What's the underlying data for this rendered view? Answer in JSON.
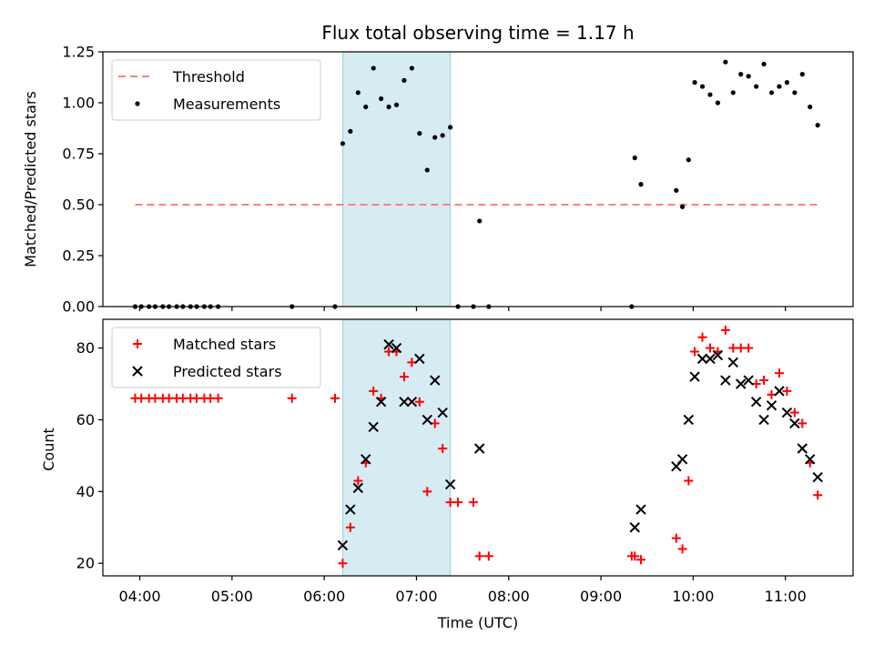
{
  "chart_data": [
    {
      "type": "scatter",
      "title": "Flux total observing time = 1.17 h",
      "xlabel": "",
      "ylabel": "Matched/Predicted stars",
      "xlim": [
        "03:36",
        "11:44"
      ],
      "ylim": [
        0,
        1.25
      ],
      "yticks": [
        "0.00",
        "0.25",
        "0.50",
        "0.75",
        "1.00",
        "1.25"
      ],
      "xticks": [
        "04:00",
        "05:00",
        "06:00",
        "07:00",
        "08:00",
        "09:00",
        "10:00",
        "11:00"
      ],
      "show_xtick_labels": false,
      "shaded_span": [
        "06:12",
        "07:22"
      ],
      "threshold": {
        "name": "Threshold",
        "value": 0.5,
        "x": [
          "03:57",
          "11:22"
        ],
        "color": "#ff7f7f",
        "style": "dashed"
      },
      "legend": {
        "loc": "upper-left",
        "entries": [
          "Threshold",
          "Measurements"
        ]
      },
      "series": [
        {
          "name": "Measurements",
          "marker": "dot",
          "color": "#000000",
          "points": [
            [
              "03:57",
              0
            ],
            [
              "04:01",
              0
            ],
            [
              "04:06",
              0
            ],
            [
              "04:10",
              0
            ],
            [
              "04:15",
              0
            ],
            [
              "04:19",
              0
            ],
            [
              "04:24",
              0
            ],
            [
              "04:28",
              0
            ],
            [
              "04:33",
              0
            ],
            [
              "04:37",
              0
            ],
            [
              "04:42",
              0
            ],
            [
              "04:46",
              0
            ],
            [
              "04:51",
              0
            ],
            [
              "05:39",
              0
            ],
            [
              "06:07",
              0
            ],
            [
              "06:12",
              0.8
            ],
            [
              "06:17",
              0.86
            ],
            [
              "06:22",
              1.05
            ],
            [
              "06:27",
              0.98
            ],
            [
              "06:32",
              1.17
            ],
            [
              "06:37",
              1.02
            ],
            [
              "06:42",
              0.98
            ],
            [
              "06:47",
              0.99
            ],
            [
              "06:52",
              1.11
            ],
            [
              "06:57",
              1.17
            ],
            [
              "07:02",
              0.85
            ],
            [
              "07:07",
              0.67
            ],
            [
              "07:12",
              0.83
            ],
            [
              "07:17",
              0.84
            ],
            [
              "07:22",
              0.88
            ],
            [
              "07:27",
              0
            ],
            [
              "07:37",
              0
            ],
            [
              "07:41",
              0.42
            ],
            [
              "07:47",
              0
            ],
            [
              "09:20",
              0
            ],
            [
              "09:22",
              0.73
            ],
            [
              "09:26",
              0.6
            ],
            [
              "09:49",
              0.57
            ],
            [
              "09:53",
              0.49
            ],
            [
              "09:57",
              0.72
            ],
            [
              "10:01",
              1.1
            ],
            [
              "10:06",
              1.08
            ],
            [
              "10:11",
              1.04
            ],
            [
              "10:16",
              1.0
            ],
            [
              "10:21",
              1.2
            ],
            [
              "10:26",
              1.05
            ],
            [
              "10:31",
              1.14
            ],
            [
              "10:36",
              1.13
            ],
            [
              "10:41",
              1.08
            ],
            [
              "10:46",
              1.19
            ],
            [
              "10:51",
              1.05
            ],
            [
              "10:56",
              1.08
            ],
            [
              "11:01",
              1.1
            ],
            [
              "11:06",
              1.05
            ],
            [
              "11:11",
              1.14
            ],
            [
              "11:16",
              0.98
            ],
            [
              "11:21",
              0.89
            ]
          ]
        }
      ]
    },
    {
      "type": "scatter",
      "title": "",
      "xlabel": "Time (UTC)",
      "ylabel": "Count",
      "xlim": [
        "03:36",
        "11:44"
      ],
      "ylim": [
        16.5,
        88
      ],
      "yticks": [
        "20",
        "40",
        "60",
        "80"
      ],
      "xticks": [
        "04:00",
        "05:00",
        "06:00",
        "07:00",
        "08:00",
        "09:00",
        "10:00",
        "11:00"
      ],
      "show_xtick_labels": true,
      "shaded_span": [
        "06:12",
        "07:22"
      ],
      "legend": {
        "loc": "upper-left",
        "entries": [
          "Matched stars",
          "Predicted stars"
        ]
      },
      "series": [
        {
          "name": "Matched stars",
          "marker": "plus",
          "color": "#ff0000",
          "points": [
            [
              "03:57",
              66
            ],
            [
              "04:01",
              66
            ],
            [
              "04:06",
              66
            ],
            [
              "04:10",
              66
            ],
            [
              "04:15",
              66
            ],
            [
              "04:19",
              66
            ],
            [
              "04:24",
              66
            ],
            [
              "04:28",
              66
            ],
            [
              "04:33",
              66
            ],
            [
              "04:37",
              66
            ],
            [
              "04:42",
              66
            ],
            [
              "04:46",
              66
            ],
            [
              "04:51",
              66
            ],
            [
              "05:39",
              66
            ],
            [
              "06:07",
              66
            ],
            [
              "06:12",
              20
            ],
            [
              "06:17",
              30
            ],
            [
              "06:22",
              43
            ],
            [
              "06:27",
              48
            ],
            [
              "06:32",
              68
            ],
            [
              "06:37",
              66
            ],
            [
              "06:42",
              79
            ],
            [
              "06:47",
              79
            ],
            [
              "06:52",
              72
            ],
            [
              "06:57",
              76
            ],
            [
              "07:02",
              65
            ],
            [
              "07:07",
              40
            ],
            [
              "07:12",
              59
            ],
            [
              "07:17",
              52
            ],
            [
              "07:22",
              37
            ],
            [
              "07:27",
              37
            ],
            [
              "07:37",
              37
            ],
            [
              "07:41",
              22
            ],
            [
              "07:47",
              22
            ],
            [
              "09:20",
              22
            ],
            [
              "09:22",
              22
            ],
            [
              "09:26",
              21
            ],
            [
              "09:49",
              27
            ],
            [
              "09:53",
              24
            ],
            [
              "09:57",
              43
            ],
            [
              "10:01",
              79
            ],
            [
              "10:06",
              83
            ],
            [
              "10:11",
              80
            ],
            [
              "10:16",
              79
            ],
            [
              "10:21",
              85
            ],
            [
              "10:26",
              80
            ],
            [
              "10:31",
              80
            ],
            [
              "10:36",
              80
            ],
            [
              "10:41",
              70
            ],
            [
              "10:46",
              71
            ],
            [
              "10:51",
              67
            ],
            [
              "10:56",
              73
            ],
            [
              "11:01",
              68
            ],
            [
              "11:06",
              62
            ],
            [
              "11:11",
              59
            ],
            [
              "11:16",
              48
            ],
            [
              "11:21",
              39
            ]
          ]
        },
        {
          "name": "Predicted stars",
          "marker": "x",
          "color": "#000000",
          "points": [
            [
              "06:12",
              25
            ],
            [
              "06:17",
              35
            ],
            [
              "06:22",
              41
            ],
            [
              "06:27",
              49
            ],
            [
              "06:32",
              58
            ],
            [
              "06:37",
              65
            ],
            [
              "06:42",
              81
            ],
            [
              "06:47",
              80
            ],
            [
              "06:52",
              65
            ],
            [
              "06:57",
              65
            ],
            [
              "07:02",
              77
            ],
            [
              "07:07",
              60
            ],
            [
              "07:12",
              71
            ],
            [
              "07:17",
              62
            ],
            [
              "07:22",
              42
            ],
            [
              "07:41",
              52
            ],
            [
              "09:22",
              30
            ],
            [
              "09:26",
              35
            ],
            [
              "09:49",
              47
            ],
            [
              "09:53",
              49
            ],
            [
              "09:57",
              60
            ],
            [
              "10:01",
              72
            ],
            [
              "10:06",
              77
            ],
            [
              "10:11",
              77
            ],
            [
              "10:16",
              78
            ],
            [
              "10:21",
              71
            ],
            [
              "10:26",
              76
            ],
            [
              "10:31",
              70
            ],
            [
              "10:36",
              71
            ],
            [
              "10:41",
              65
            ],
            [
              "10:46",
              60
            ],
            [
              "10:51",
              64
            ],
            [
              "10:56",
              68
            ],
            [
              "11:01",
              62
            ],
            [
              "11:06",
              59
            ],
            [
              "11:11",
              52
            ],
            [
              "11:16",
              49
            ],
            [
              "11:21",
              44
            ]
          ]
        }
      ]
    }
  ]
}
